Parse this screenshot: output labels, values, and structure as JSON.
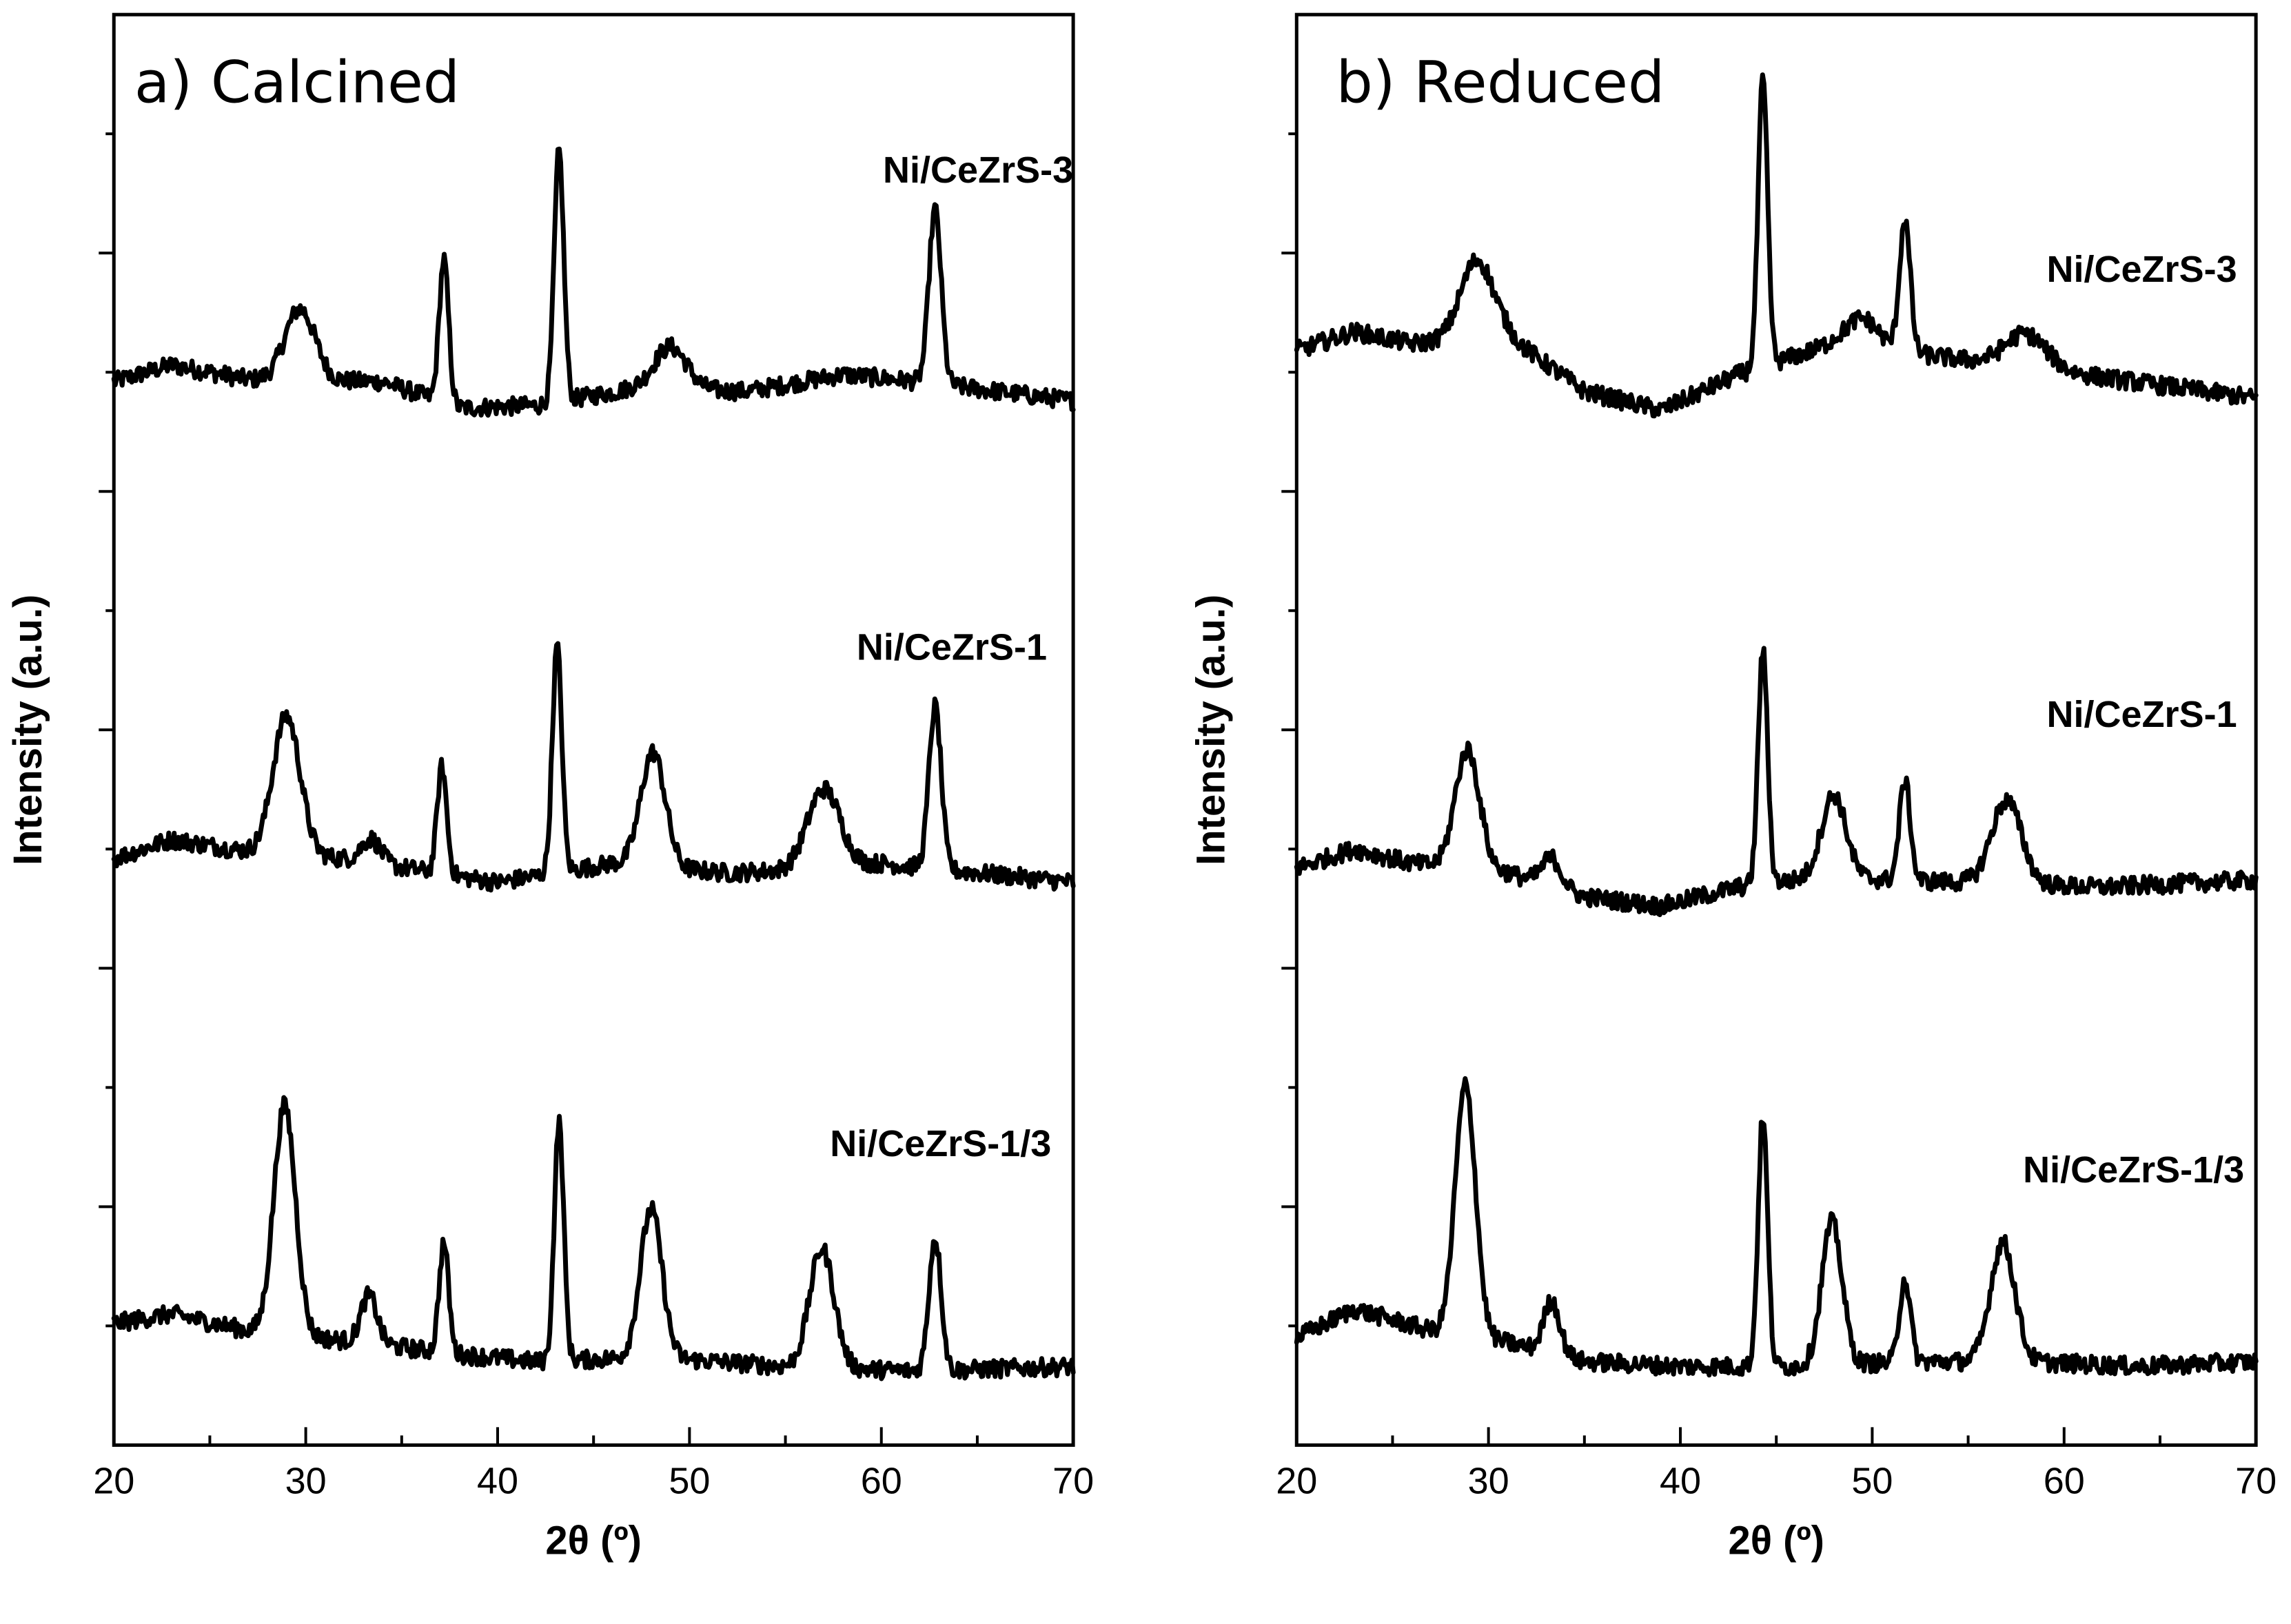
{
  "chart_data": [
    {
      "type": "line",
      "title": "a) Calcined",
      "xlabel": "2θ (º)",
      "ylabel": "Intensity (a.u.)",
      "xlim": [
        20,
        70
      ],
      "ylim": [
        0,
        6
      ],
      "xticks": [
        20,
        30,
        40,
        50,
        60,
        70
      ],
      "y_tick_labels_shown": false,
      "series": [
        {
          "name": "Ni/CeZrS-3",
          "baseline": 4.42,
          "slope": 0.0,
          "background": [
            [
              20,
              0.04
            ],
            [
              23,
              0.11
            ],
            [
              27,
              0.05
            ],
            [
              34,
              0.04
            ],
            [
              38,
              -0.07
            ],
            [
              42,
              -0.06
            ],
            [
              47,
              0.01
            ],
            [
              53,
              0.0
            ],
            [
              58,
              0.07
            ],
            [
              62,
              0.04
            ],
            [
              70,
              -0.04
            ]
          ],
          "peaks": [
            [
              29.7,
              0.3,
              1.1
            ],
            [
              37.2,
              0.6,
              0.35
            ],
            [
              43.2,
              1.05,
              0.35
            ],
            [
              49.0,
              0.18,
              1.2
            ],
            [
              62.8,
              0.73,
              0.45
            ]
          ]
        },
        {
          "name": "Ni/CeZrS-1",
          "baseline": 2.46,
          "slope": 0.0,
          "background": [
            [
              20,
              0.0
            ],
            [
              23,
              0.08
            ],
            [
              27,
              0.03
            ],
            [
              32,
              0.0
            ],
            [
              36,
              -0.05
            ],
            [
              40,
              -0.1
            ],
            [
              46,
              -0.02
            ],
            [
              52,
              -0.06
            ],
            [
              55,
              -0.05
            ],
            [
              60,
              -0.02
            ],
            [
              70,
              -0.1
            ]
          ],
          "peaks": [
            [
              29.0,
              0.58,
              1.0
            ],
            [
              33.4,
              0.1,
              0.7
            ],
            [
              37.1,
              0.45,
              0.35
            ],
            [
              43.1,
              0.95,
              0.35
            ],
            [
              48.1,
              0.48,
              0.9
            ],
            [
              57.0,
              0.33,
              1.2
            ],
            [
              62.8,
              0.68,
              0.45
            ]
          ]
        },
        {
          "name": "Ni/CeZrS-1/3",
          "baseline": 0.45,
          "slope": 0.0,
          "background": [
            [
              20,
              0.06
            ],
            [
              23,
              0.1
            ],
            [
              27,
              0.03
            ],
            [
              33,
              -0.02
            ],
            [
              38,
              -0.07
            ],
            [
              42,
              -0.1
            ],
            [
              48,
              -0.08
            ],
            [
              55,
              -0.12
            ],
            [
              62,
              -0.14
            ],
            [
              70,
              -0.12
            ]
          ],
          "peaks": [
            [
              28.9,
              0.96,
              0.8
            ],
            [
              33.3,
              0.2,
              0.6
            ],
            [
              37.2,
              0.46,
              0.35
            ],
            [
              43.2,
              1.0,
              0.35
            ],
            [
              48.0,
              0.62,
              0.8
            ],
            [
              56.9,
              0.5,
              0.9
            ],
            [
              62.8,
              0.56,
              0.45
            ]
          ]
        }
      ]
    },
    {
      "type": "line",
      "title": "b) Reduced",
      "xlabel": "2θ (º)",
      "ylabel": "Intensity (a.u.)",
      "xlim": [
        20,
        70
      ],
      "ylim": [
        0,
        6
      ],
      "xticks": [
        20,
        30,
        40,
        50,
        60,
        70
      ],
      "y_tick_labels_shown": false,
      "series": [
        {
          "name": "Ni/CeZrS-3",
          "baseline": 4.67,
          "slope": 0.0,
          "background": [
            [
              20,
              -0.08
            ],
            [
              23,
              0.0
            ],
            [
              26,
              -0.05
            ],
            [
              31,
              -0.02
            ],
            [
              35,
              -0.25
            ],
            [
              39,
              -0.33
            ],
            [
              43,
              -0.18
            ],
            [
              48,
              -0.05
            ],
            [
              55,
              -0.12
            ],
            [
              60,
              -0.17
            ],
            [
              70,
              -0.28
            ]
          ],
          "peaks": [
            [
              29.4,
              0.33,
              1.2
            ],
            [
              44.3,
              1.2,
              0.35
            ],
            [
              49.5,
              0.12,
              1.2
            ],
            [
              51.7,
              0.55,
              0.4
            ],
            [
              58.0,
              0.14,
              1.5
            ]
          ]
        },
        {
          "name": "Ni/CeZrS-1",
          "baseline": 2.42,
          "slope": 0.0,
          "background": [
            [
              20,
              0.0
            ],
            [
              23,
              0.08
            ],
            [
              26,
              0.02
            ],
            [
              31,
              -0.02
            ],
            [
              35,
              -0.12
            ],
            [
              39,
              -0.16
            ],
            [
              43,
              -0.08
            ],
            [
              47,
              -0.04
            ],
            [
              55,
              -0.06
            ],
            [
              62,
              -0.08
            ],
            [
              70,
              -0.05
            ]
          ],
          "peaks": [
            [
              28.9,
              0.5,
              0.9
            ],
            [
              33.3,
              0.12,
              0.7
            ],
            [
              44.3,
              0.98,
              0.35
            ],
            [
              48.0,
              0.35,
              0.9
            ],
            [
              51.7,
              0.42,
              0.4
            ],
            [
              57.0,
              0.35,
              1.1
            ]
          ]
        },
        {
          "name": "Ni/CeZrS-1/3",
          "baseline": 0.45,
          "slope": 0.0,
          "background": [
            [
              20,
              0.0
            ],
            [
              23,
              0.12
            ],
            [
              27,
              0.03
            ],
            [
              31,
              -0.02
            ],
            [
              35,
              -0.1
            ],
            [
              40,
              -0.12
            ],
            [
              46,
              -0.12
            ],
            [
              52,
              -0.1
            ],
            [
              58,
              -0.1
            ],
            [
              64,
              -0.12
            ],
            [
              70,
              -0.1
            ]
          ],
          "peaks": [
            [
              28.8,
              1.05,
              0.75
            ],
            [
              33.3,
              0.22,
              0.6
            ],
            [
              44.3,
              1.05,
              0.35
            ],
            [
              47.9,
              0.6,
              0.75
            ],
            [
              51.7,
              0.35,
              0.4
            ],
            [
              56.8,
              0.5,
              0.9
            ]
          ]
        }
      ]
    }
  ]
}
